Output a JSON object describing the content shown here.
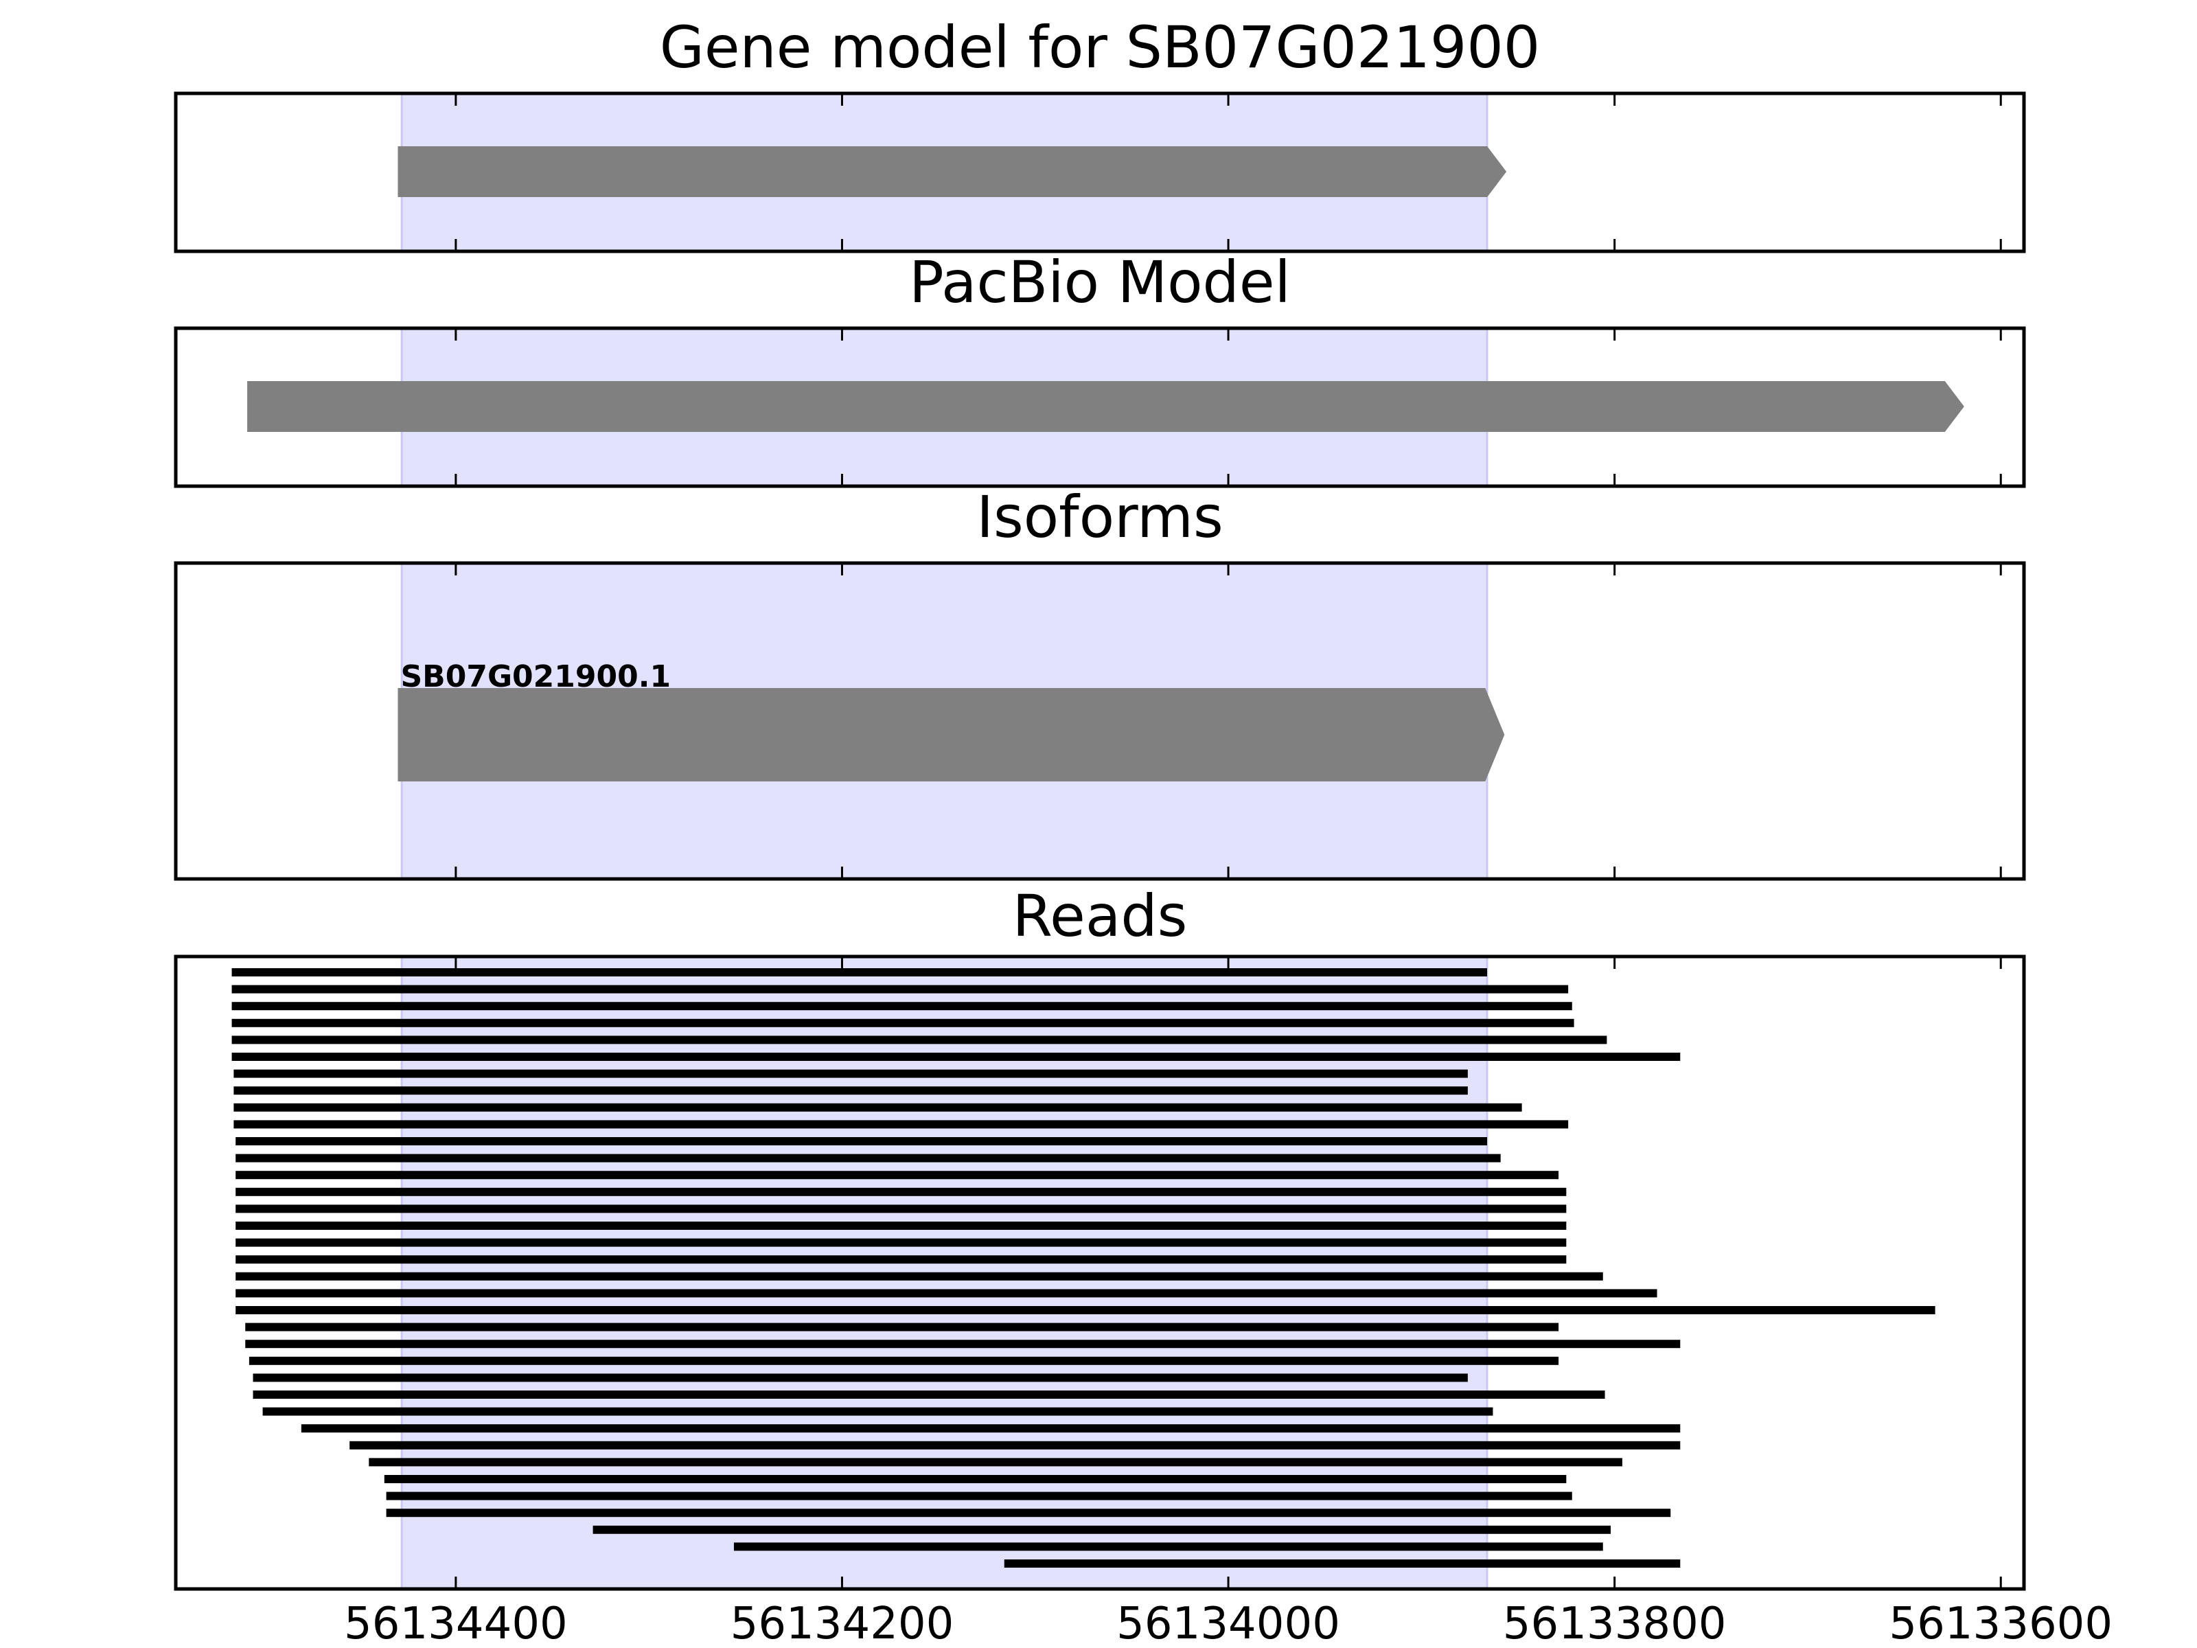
{
  "chart_data": {
    "type": "gene-track",
    "x_axis": {
      "reversed": true,
      "ticks": [
        56134400,
        56134200,
        56134000,
        56133800,
        56133600
      ],
      "tick_labels": [
        "56134400",
        "56134200",
        "56134000",
        "56133800",
        "56133600"
      ],
      "range": [
        56134545,
        56133588
      ]
    },
    "highlight_region": {
      "start": 56134428,
      "end": 56133866
    },
    "panels": [
      {
        "key": "gene",
        "title": "Gene model for SB07G021900",
        "features": [
          {
            "start": 56134430,
            "end": 56133856,
            "strand": "-"
          }
        ]
      },
      {
        "key": "pacbio",
        "title": "PacBio Model",
        "features": [
          {
            "start": 56134508,
            "end": 56133619,
            "strand": "-"
          }
        ]
      },
      {
        "key": "isoforms",
        "title": "Isoforms",
        "features": [
          {
            "label": "SB07G021900.1",
            "start": 56134430,
            "end": 56133857,
            "strand": "-"
          }
        ]
      },
      {
        "key": "reads",
        "title": "Reads",
        "reads": [
          [
            56134516,
            56133866
          ],
          [
            56134516,
            56133824
          ],
          [
            56134516,
            56133822
          ],
          [
            56134516,
            56133821
          ],
          [
            56134516,
            56133804
          ],
          [
            56134516,
            56133766
          ],
          [
            56134515,
            56133876
          ],
          [
            56134515,
            56133876
          ],
          [
            56134515,
            56133848
          ],
          [
            56134515,
            56133824
          ],
          [
            56134514,
            56133866
          ],
          [
            56134514,
            56133859
          ],
          [
            56134514,
            56133829
          ],
          [
            56134514,
            56133825
          ],
          [
            56134514,
            56133825
          ],
          [
            56134514,
            56133825
          ],
          [
            56134514,
            56133825
          ],
          [
            56134514,
            56133825
          ],
          [
            56134514,
            56133806
          ],
          [
            56134514,
            56133778
          ],
          [
            56134514,
            56133634
          ],
          [
            56134509,
            56133829
          ],
          [
            56134509,
            56133766
          ],
          [
            56134507,
            56133829
          ],
          [
            56134505,
            56133876
          ],
          [
            56134505,
            56133805
          ],
          [
            56134500,
            56133863
          ],
          [
            56134480,
            56133766
          ],
          [
            56134455,
            56133766
          ],
          [
            56134445,
            56133796
          ],
          [
            56134437,
            56133825
          ],
          [
            56134436,
            56133822
          ],
          [
            56134436,
            56133771
          ],
          [
            56134329,
            56133802
          ],
          [
            56134256,
            56133806
          ],
          [
            56134116,
            56133766
          ]
        ]
      }
    ]
  }
}
